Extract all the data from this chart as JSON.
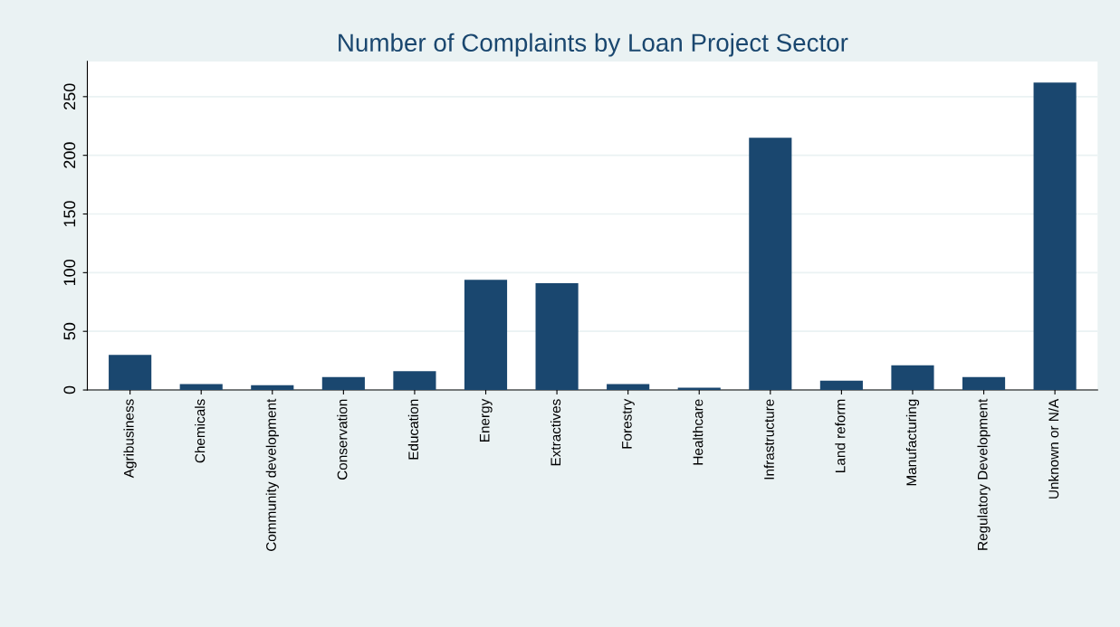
{
  "chart_data": {
    "type": "bar",
    "title": "Number of Complaints by Loan Project Sector",
    "categories": [
      "Agribusiness",
      "Chemicals",
      "Community development",
      "Conservation",
      "Education",
      "Energy",
      "Extractives",
      "Forestry",
      "Healthcare",
      "Infrastructure",
      "Land reform",
      "Manufacturing",
      "Regulatory Development",
      "Unknown or N/A"
    ],
    "values": [
      30,
      5,
      4,
      11,
      16,
      94,
      91,
      5,
      2,
      215,
      8,
      21,
      11,
      262
    ],
    "color": "#1a476f",
    "ylim": [
      0,
      280
    ],
    "yticks": [
      0,
      50,
      100,
      150,
      200,
      250
    ],
    "grid": "y"
  }
}
